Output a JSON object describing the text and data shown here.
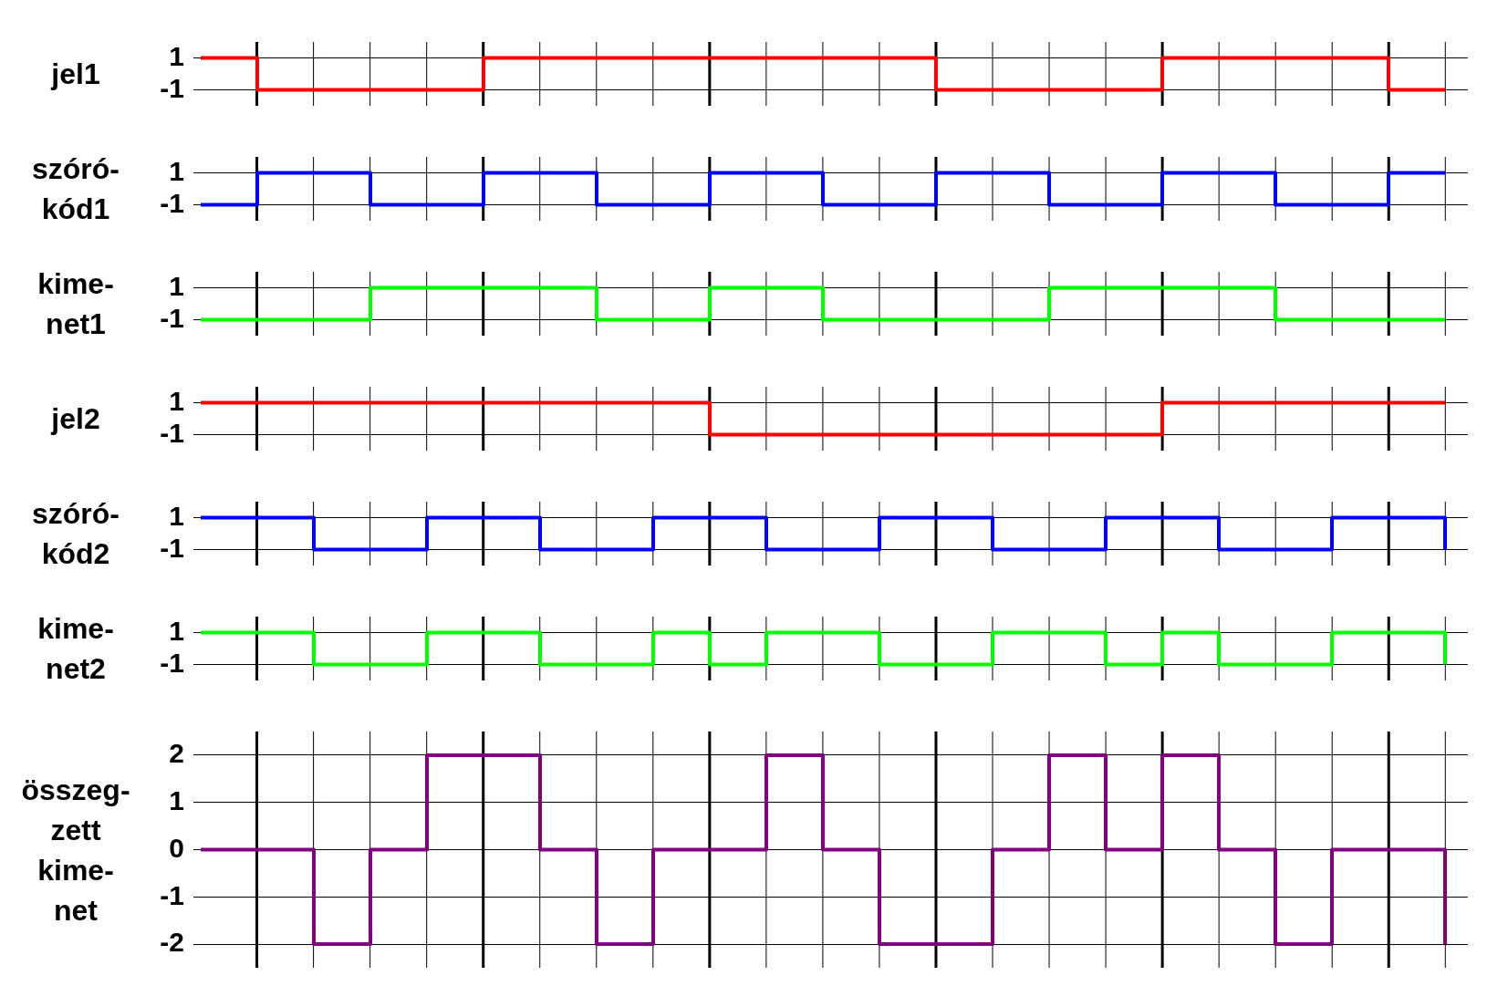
{
  "chart_data": [
    {
      "type": "step",
      "ylabel": "jel1",
      "categories": [
        null,
        null,
        null,
        null,
        null,
        null,
        null,
        null,
        null,
        null,
        null,
        null,
        null,
        null,
        null,
        null,
        null,
        null,
        null,
        null,
        null,
        null,
        null
      ],
      "series": [
        {
          "color": "#ff0000",
          "values": [
            1,
            -1,
            -1,
            -1,
            -1,
            1,
            1,
            1,
            1,
            1,
            1,
            1,
            1,
            -1,
            -1,
            -1,
            -1,
            1,
            1,
            1,
            1,
            -1,
            -1
          ]
        }
      ],
      "ylim": [
        -2,
        2
      ],
      "yticks": [
        -1,
        1
      ],
      "grid": true,
      "tick_labels": "y"
    },
    {
      "type": "step",
      "ylabel": "szóró-kód1",
      "categories": [
        null,
        null,
        null,
        null,
        null,
        null,
        null,
        null,
        null,
        null,
        null,
        null,
        null,
        null,
        null,
        null,
        null,
        null,
        null,
        null,
        null,
        null,
        null
      ],
      "series": [
        {
          "color": "#0000ff",
          "values": [
            -1,
            1,
            1,
            -1,
            -1,
            1,
            1,
            -1,
            -1,
            1,
            1,
            -1,
            -1,
            1,
            1,
            -1,
            -1,
            1,
            1,
            -1,
            -1,
            1,
            1
          ]
        }
      ],
      "ylim": [
        -2,
        2
      ],
      "yticks": [
        -1,
        1
      ],
      "grid": true,
      "tick_labels": "y"
    },
    {
      "type": "step",
      "ylabel": "kime-net1",
      "categories": [
        null,
        null,
        null,
        null,
        null,
        null,
        null,
        null,
        null,
        null,
        null,
        null,
        null,
        null,
        null,
        null,
        null,
        null,
        null,
        null,
        null,
        null,
        null
      ],
      "series": [
        {
          "color": "#00ff00",
          "values": [
            -1,
            -1,
            -1,
            1,
            1,
            1,
            1,
            -1,
            -1,
            1,
            1,
            -1,
            -1,
            -1,
            -1,
            1,
            1,
            1,
            1,
            -1,
            -1,
            -1,
            -1
          ]
        }
      ],
      "ylim": [
        -2,
        2
      ],
      "yticks": [
        -1,
        1
      ],
      "grid": true,
      "tick_labels": "y"
    },
    {
      "type": "step",
      "ylabel": "jel2",
      "categories": [
        null,
        null,
        null,
        null,
        null,
        null,
        null,
        null,
        null,
        null,
        null,
        null,
        null,
        null,
        null,
        null,
        null,
        null,
        null,
        null,
        null,
        null,
        null
      ],
      "series": [
        {
          "color": "#ff0000",
          "values": [
            1,
            1,
            1,
            1,
            1,
            1,
            1,
            1,
            1,
            -1,
            -1,
            -1,
            -1,
            -1,
            -1,
            -1,
            -1,
            1,
            1,
            1,
            1,
            1,
            1
          ]
        }
      ],
      "ylim": [
        -2,
        2
      ],
      "yticks": [
        -1,
        1
      ],
      "grid": true,
      "tick_labels": "y"
    },
    {
      "type": "step",
      "ylabel": "szóró-kód2",
      "categories": [
        null,
        null,
        null,
        null,
        null,
        null,
        null,
        null,
        null,
        null,
        null,
        null,
        null,
        null,
        null,
        null,
        null,
        null,
        null,
        null,
        null,
        null,
        null
      ],
      "series": [
        {
          "color": "#0000ff",
          "values": [
            1,
            1,
            -1,
            -1,
            1,
            1,
            -1,
            -1,
            1,
            1,
            -1,
            -1,
            1,
            1,
            -1,
            -1,
            1,
            1,
            -1,
            -1,
            1,
            1,
            -1
          ]
        }
      ],
      "ylim": [
        -2,
        2
      ],
      "yticks": [
        -1,
        1
      ],
      "grid": true,
      "tick_labels": "y"
    },
    {
      "type": "step",
      "ylabel": "kime-net2",
      "categories": [
        null,
        null,
        null,
        null,
        null,
        null,
        null,
        null,
        null,
        null,
        null,
        null,
        null,
        null,
        null,
        null,
        null,
        null,
        null,
        null,
        null,
        null,
        null
      ],
      "series": [
        {
          "color": "#00ff00",
          "values": [
            1,
            1,
            -1,
            -1,
            1,
            1,
            -1,
            -1,
            1,
            -1,
            1,
            1,
            -1,
            -1,
            1,
            1,
            -1,
            1,
            -1,
            -1,
            1,
            1,
            -1
          ]
        }
      ],
      "ylim": [
        -2,
        2
      ],
      "yticks": [
        -1,
        1
      ],
      "grid": true,
      "tick_labels": "y"
    },
    {
      "type": "step",
      "ylabel": "összeg-zett kime-net",
      "categories": [
        null,
        null,
        null,
        null,
        null,
        null,
        null,
        null,
        null,
        null,
        null,
        null,
        null,
        null,
        null,
        null,
        null,
        null,
        null,
        null,
        null,
        null,
        null
      ],
      "series": [
        {
          "color": "#800080",
          "values": [
            0,
            0,
            -2,
            0,
            2,
            2,
            0,
            -2,
            0,
            0,
            2,
            0,
            -2,
            -2,
            0,
            2,
            0,
            2,
            0,
            -2,
            0,
            0,
            -2
          ]
        }
      ],
      "ylim": [
        -2.5,
        2.5
      ],
      "yticks": [
        -2,
        -1,
        0,
        1,
        2
      ],
      "grid": true,
      "tick_labels": "y"
    }
  ]
}
